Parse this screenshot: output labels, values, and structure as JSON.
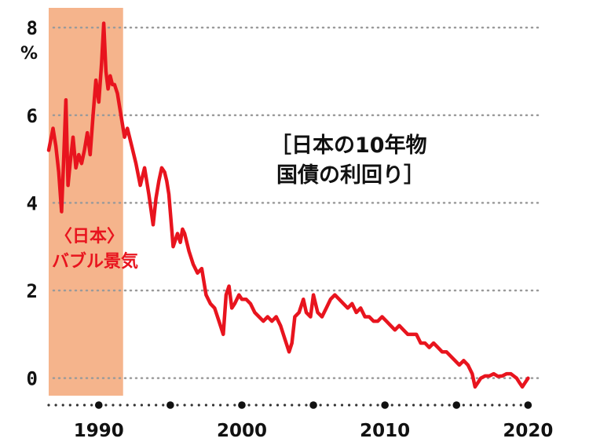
{
  "chart_data": {
    "type": "line",
    "title_line1": "［日本の10年物",
    "title_line2": "国債の利回り］",
    "y_unit": "%",
    "xlim": [
      1986.5,
      2020.2
    ],
    "ylim": [
      -0.4,
      8.2
    ],
    "y_ticks": [
      0,
      2,
      4,
      6,
      8
    ],
    "y_tick_labels": [
      "0",
      "2",
      "4",
      "6",
      "8"
    ],
    "x_ticks_labeled": [
      1990,
      2000,
      2010,
      2020
    ],
    "x_tick_labels": [
      "1990",
      "2000",
      "2010",
      "2020"
    ],
    "x_minor_dots": [
      1986.5,
      1987,
      1987.5,
      1988,
      1988.5,
      1989,
      1989.5,
      1990.5,
      1991,
      1991.5,
      1992,
      1992.5,
      1993,
      1993.5,
      1994,
      1994.5,
      1995,
      1995.5,
      1996,
      1996.5,
      1997,
      1997.5,
      1998,
      1998.5,
      1999,
      1999.5,
      2000.5,
      2001,
      2001.5,
      2002,
      2002.5,
      2003,
      2003.5,
      2004,
      2004.5,
      2005,
      2005.5,
      2006,
      2006.5,
      2007,
      2007.5,
      2008,
      2008.5,
      2009,
      2009.5,
      2010.5,
      2011,
      2011.5,
      2012,
      2012.5,
      2013,
      2013.5,
      2014,
      2014.5,
      2015,
      2015.5,
      2016,
      2016.5,
      2017,
      2017.5,
      2018,
      2018.5,
      2019,
      2019.5
    ],
    "x_major_dots": [
      1990,
      1995,
      2000,
      2005,
      2010,
      2015,
      2020
    ],
    "grid": "horizontal-dotted",
    "band": {
      "x_start": 1986.5,
      "x_end": 1991.7,
      "color": "#f5b48c",
      "label_line1": "〈日本〉",
      "label_line2": "バブル景気"
    },
    "line_color": "#e8141e",
    "series": [
      {
        "x": [
          1986.5,
          1986.8,
          1987.0,
          1987.2,
          1987.4,
          1987.55,
          1987.7,
          1987.85,
          1988.0,
          1988.2,
          1988.4,
          1988.6,
          1988.8,
          1989.0,
          1989.2,
          1989.4,
          1989.6,
          1989.8,
          1990.0,
          1990.2,
          1990.35,
          1990.5,
          1990.65,
          1990.8,
          1990.95,
          1991.1,
          1991.3,
          1991.5,
          1991.8,
          1992.0,
          1992.3,
          1992.6,
          1992.9,
          1993.2,
          1993.5,
          1993.8,
          1994.0,
          1994.2,
          1994.4,
          1994.6,
          1994.75,
          1994.9,
          1995.2,
          1995.5,
          1995.7,
          1995.85,
          1996.0,
          1996.3,
          1996.6,
          1996.9,
          1997.2,
          1997.5,
          1997.8,
          1998.1,
          1998.4,
          1998.7,
          1998.9,
          1999.1,
          1999.3,
          1999.5,
          1999.8,
          2000.0,
          2000.3,
          2000.6,
          2000.9,
          2001.2,
          2001.5,
          2001.8,
          2002.1,
          2002.4,
          2002.7,
          2003.0,
          2003.3,
          2003.5,
          2003.7,
          2004.0,
          2004.3,
          2004.5,
          2004.8,
          2005.0,
          2005.3,
          2005.6,
          2005.9,
          2006.2,
          2006.5,
          2006.8,
          2007.1,
          2007.4,
          2007.7,
          2008.0,
          2008.3,
          2008.6,
          2008.9,
          2009.2,
          2009.5,
          2009.8,
          2010.1,
          2010.4,
          2010.7,
          2011.0,
          2011.3,
          2011.6,
          2011.9,
          2012.2,
          2012.5,
          2012.8,
          2013.1,
          2013.4,
          2013.7,
          2014.0,
          2014.3,
          2014.6,
          2014.9,
          2015.2,
          2015.5,
          2015.8,
          2016.1,
          2016.3,
          2016.5,
          2016.7,
          2017.0,
          2017.3,
          2017.6,
          2017.9,
          2018.2,
          2018.5,
          2018.8,
          2019.0,
          2019.2,
          2019.4,
          2019.6,
          2019.8,
          2020.0
        ],
        "y": [
          5.2,
          5.7,
          5.3,
          4.7,
          3.8,
          5.0,
          6.35,
          4.4,
          4.9,
          5.5,
          4.8,
          5.1,
          4.9,
          5.2,
          5.6,
          5.1,
          6.0,
          6.8,
          6.3,
          7.2,
          8.1,
          7.0,
          6.6,
          6.9,
          6.7,
          6.7,
          6.5,
          6.1,
          5.5,
          5.7,
          5.3,
          4.9,
          4.4,
          4.8,
          4.2,
          3.5,
          4.1,
          4.5,
          4.8,
          4.7,
          4.5,
          4.2,
          3.0,
          3.3,
          3.1,
          3.4,
          3.3,
          2.9,
          2.6,
          2.4,
          2.5,
          1.9,
          1.7,
          1.6,
          1.3,
          1.0,
          1.9,
          2.1,
          1.6,
          1.7,
          1.9,
          1.8,
          1.8,
          1.7,
          1.5,
          1.4,
          1.3,
          1.4,
          1.3,
          1.4,
          1.2,
          0.9,
          0.6,
          0.8,
          1.4,
          1.5,
          1.8,
          1.5,
          1.4,
          1.9,
          1.5,
          1.4,
          1.6,
          1.8,
          1.9,
          1.8,
          1.7,
          1.6,
          1.7,
          1.5,
          1.6,
          1.4,
          1.4,
          1.3,
          1.3,
          1.4,
          1.3,
          1.2,
          1.1,
          1.2,
          1.1,
          1.0,
          1.0,
          1.0,
          0.8,
          0.8,
          0.7,
          0.8,
          0.7,
          0.6,
          0.6,
          0.5,
          0.4,
          0.3,
          0.4,
          0.3,
          0.1,
          -0.2,
          -0.1,
          0.0,
          0.05,
          0.05,
          0.1,
          0.04,
          0.05,
          0.1,
          0.1,
          0.05,
          0.0,
          -0.1,
          -0.2,
          -0.1,
          0.0
        ]
      }
    ]
  }
}
